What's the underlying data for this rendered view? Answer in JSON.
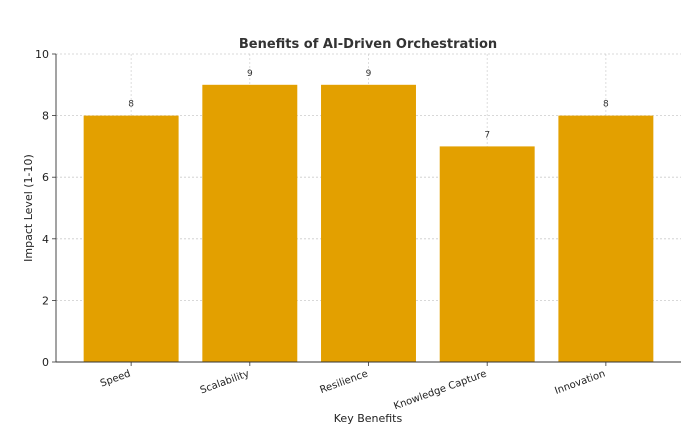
{
  "chart_data": {
    "type": "bar",
    "title": "Benefits of AI-Driven Orchestration",
    "xlabel": "Key Benefits",
    "ylabel": "Impact Level (1-10)",
    "categories": [
      "Speed",
      "Scalability",
      "Resilience",
      "Knowledge Capture",
      "Innovation"
    ],
    "values": [
      8,
      9,
      9,
      7,
      8
    ],
    "data_labels": [
      "8",
      "9",
      "9",
      "7",
      "8"
    ],
    "ylim": [
      0,
      10
    ],
    "yticks": [
      0,
      2,
      4,
      6,
      8,
      10
    ],
    "ytick_labels": [
      "0",
      "2",
      "4",
      "6",
      "8",
      "10"
    ],
    "grid": true,
    "bar_color": "#E3A000"
  }
}
